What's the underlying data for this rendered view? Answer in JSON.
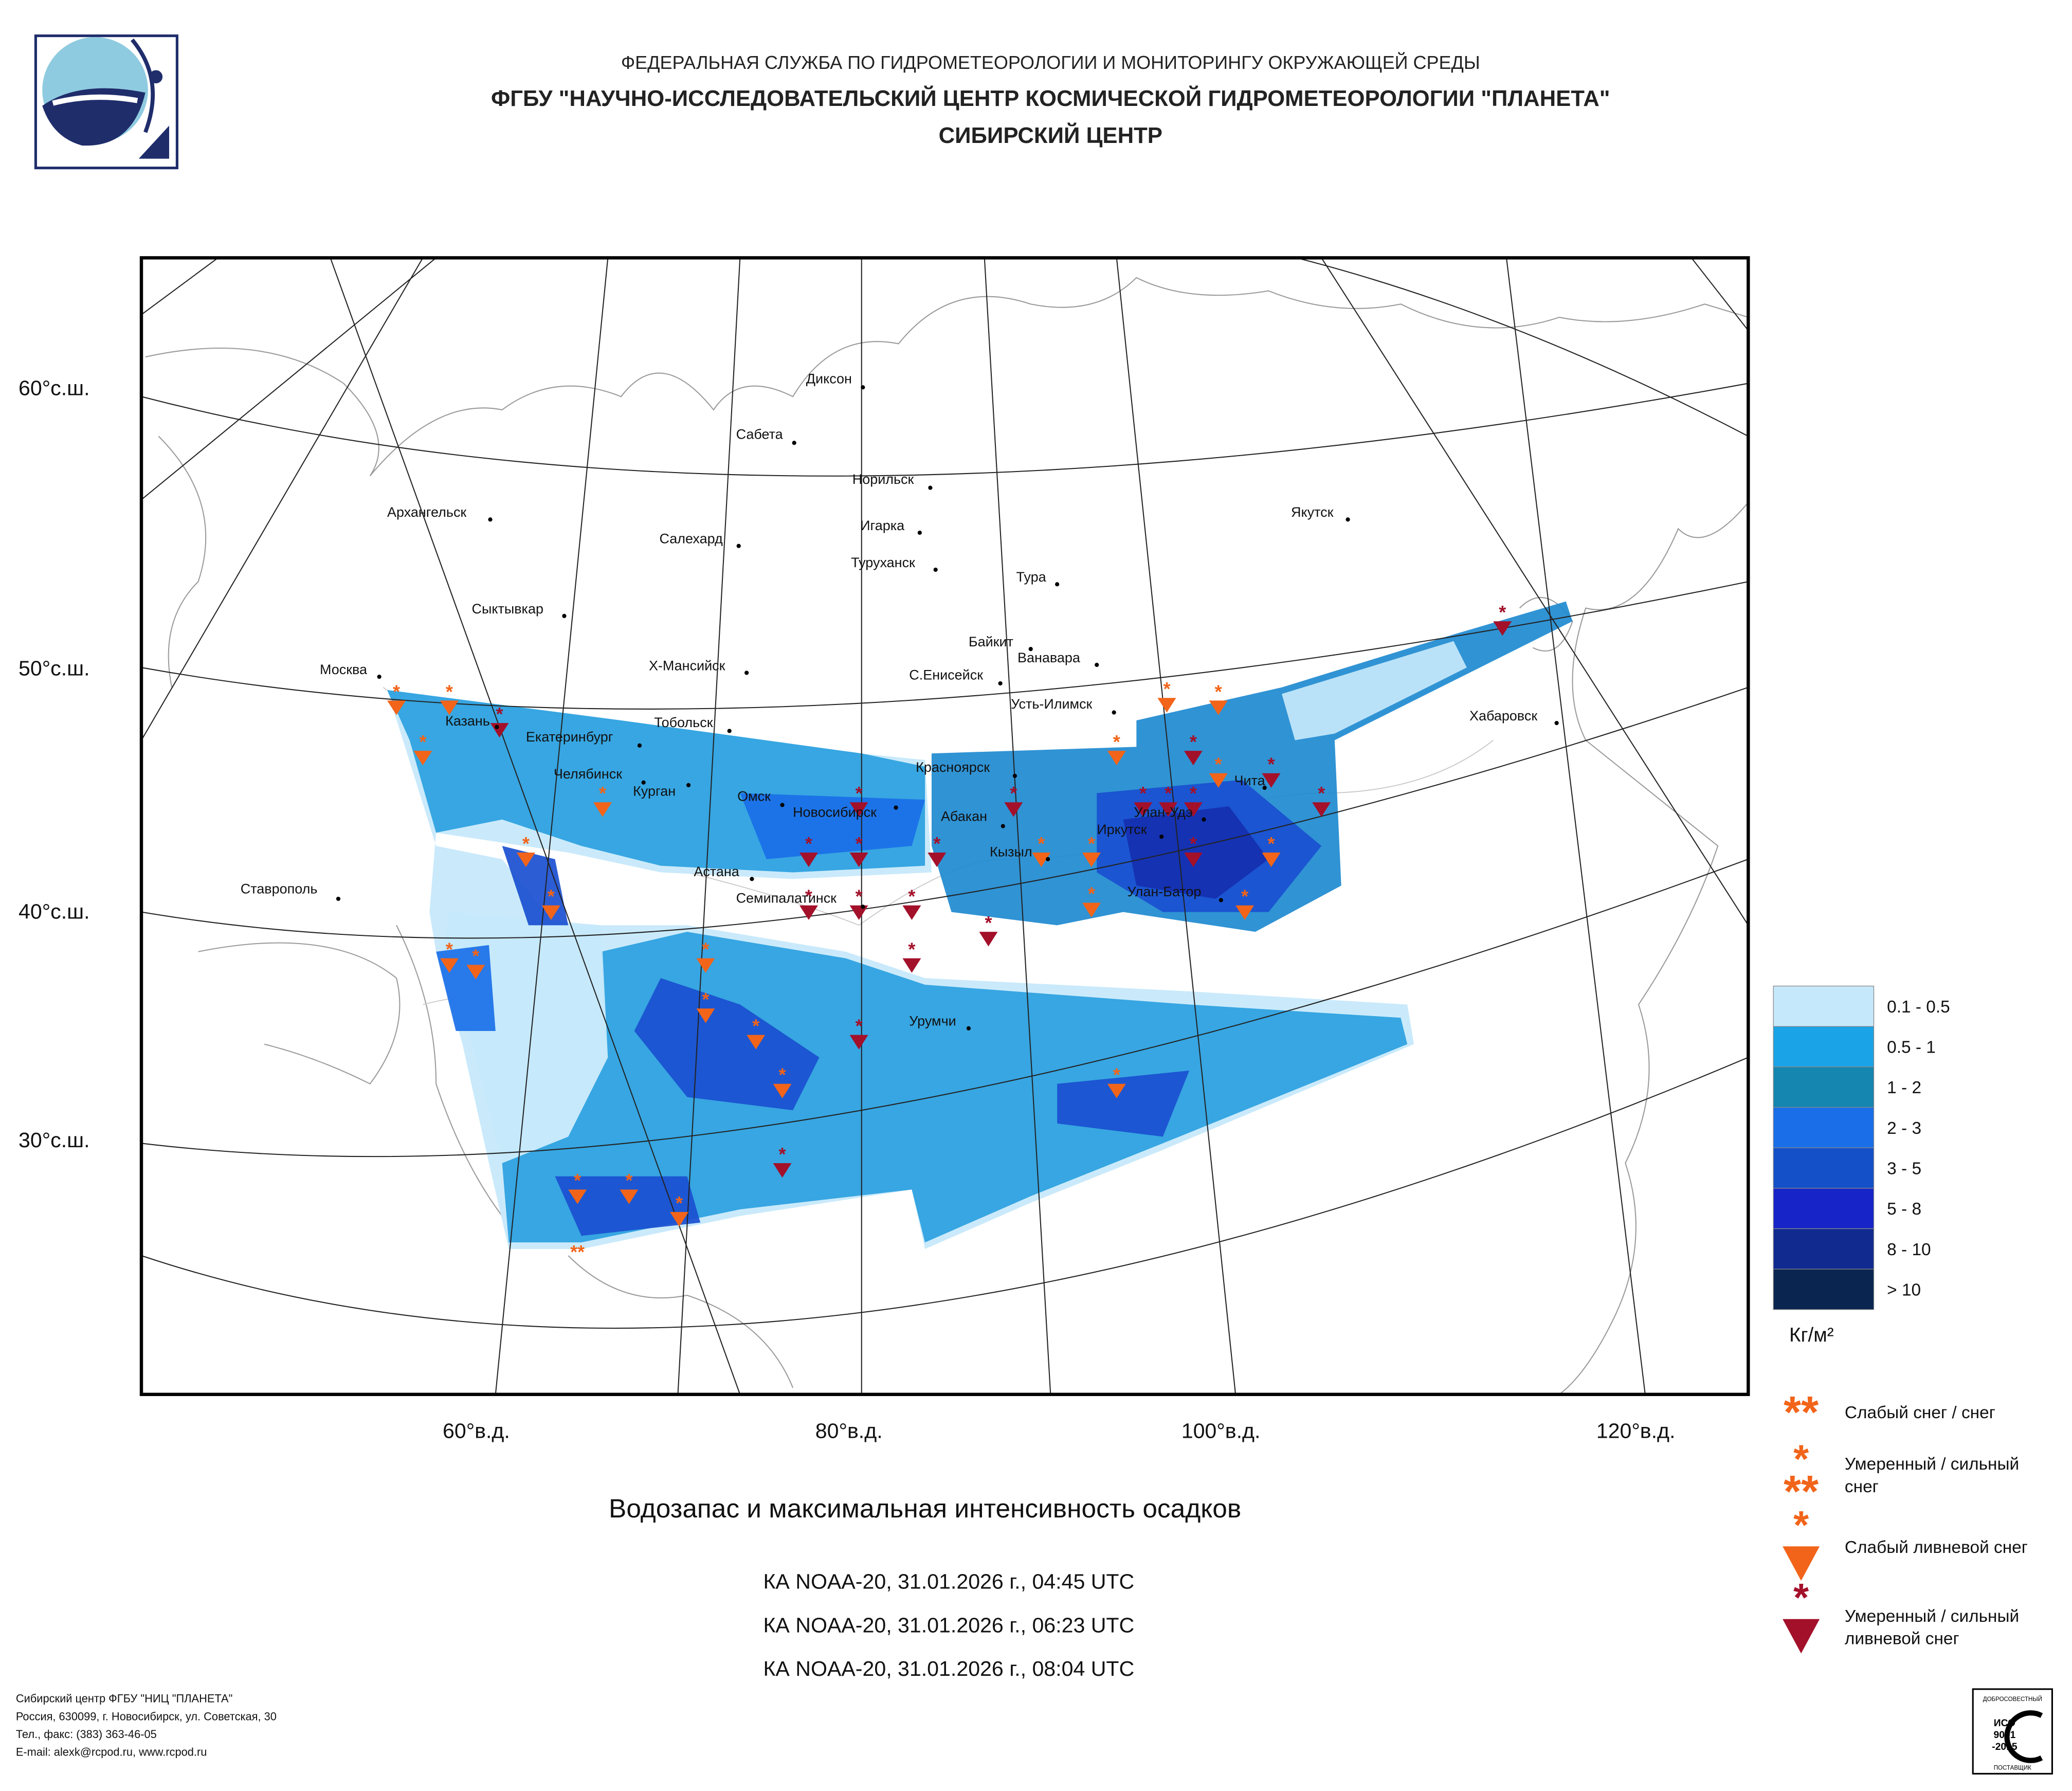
{
  "header": {
    "lines": [
      "ФЕДЕРАЛЬНАЯ СЛУЖБА ПО ГИДРОМЕТЕОРОЛОГИИ И МОНИТОРИНГУ ОКРУЖАЮЩЕЙ СРЕДЫ",
      "ФГБУ \"НАУЧНО-ИССЛЕДОВАТЕЛЬСКИЙ ЦЕНТР КОСМИЧЕСКОЙ ГИДРОМЕТЕОРОЛОГИИ \"ПЛАНЕТА\"",
      "СИБИРСКИЙ ЦЕНТР"
    ]
  },
  "map": {
    "cities": [
      "Диксон",
      "Сабета",
      "Норильск",
      "Архангельск",
      "Якутск",
      "Игарка",
      "Салехард",
      "Туруханск",
      "Тура",
      "Сыктывкар",
      "Байкит",
      "Ванавара",
      "Москва",
      "Х-Мансийск",
      "С.Енисейск",
      "Усть-Илимск",
      "Хабаровск",
      "Тобольск",
      "Казань",
      "Екатеринбург",
      "Красноярск",
      "Челябинск",
      "Курган",
      "Омск",
      "Новосибирск",
      "Абакан",
      "Чита",
      "Улан-Удэ",
      "Иркутск",
      "Кызыл",
      "Ставрополь",
      "Астана",
      "Семипалатинск",
      "Улан-Батор",
      "Урумчи"
    ],
    "latitudes": [
      "60°с.ш.",
      "50°с.ш.",
      "40°с.ш.",
      "30°с.ш."
    ],
    "longitudes": [
      "60°в.д.",
      "80°в.д.",
      "100°в.д.",
      "120°в.д."
    ]
  },
  "legend": {
    "classes": [
      "0.1 - 0.5",
      "0.5 - 1",
      "1 - 2",
      "2 - 3",
      "3 - 5",
      "5 - 8",
      "8 - 10",
      "> 10"
    ],
    "unit": "Кг/м²",
    "symbols": [
      [
        "Слабый снег / снег"
      ],
      [
        "Умеренный / сильный",
        "снег"
      ],
      [
        "Слабый ливневой снег"
      ],
      [
        "Умеренный / сильный",
        "ливневой снег"
      ]
    ]
  },
  "title": "Водозапас и максимальная интенсивность осадков",
  "passes": [
    "КА NOAA-20, 31.01.2026 г., 04:45 UTC",
    "КА NOAA-20, 31.01.2026 г., 06:23 UTC",
    "КА NOAA-20, 31.01.2026 г., 08:04 UTC"
  ],
  "footer": [
    "Сибирский центр ФГБУ \"НИЦ \"ПЛАНЕТА\"",
    "Россия, 630099, г. Новосибирск, ул. Советская, 30",
    "Тел., факс: (383) 363-46-05",
    "E-mail: alexk@rcpod.ru, www.rcpod.ru"
  ],
  "certificate": {
    "top": "ДОБРОСОВЕСТНЫЙ",
    "lines": [
      "ИСО",
      "9001",
      "-2015"
    ],
    "bottom": "ПОСТАВЩИК"
  }
}
